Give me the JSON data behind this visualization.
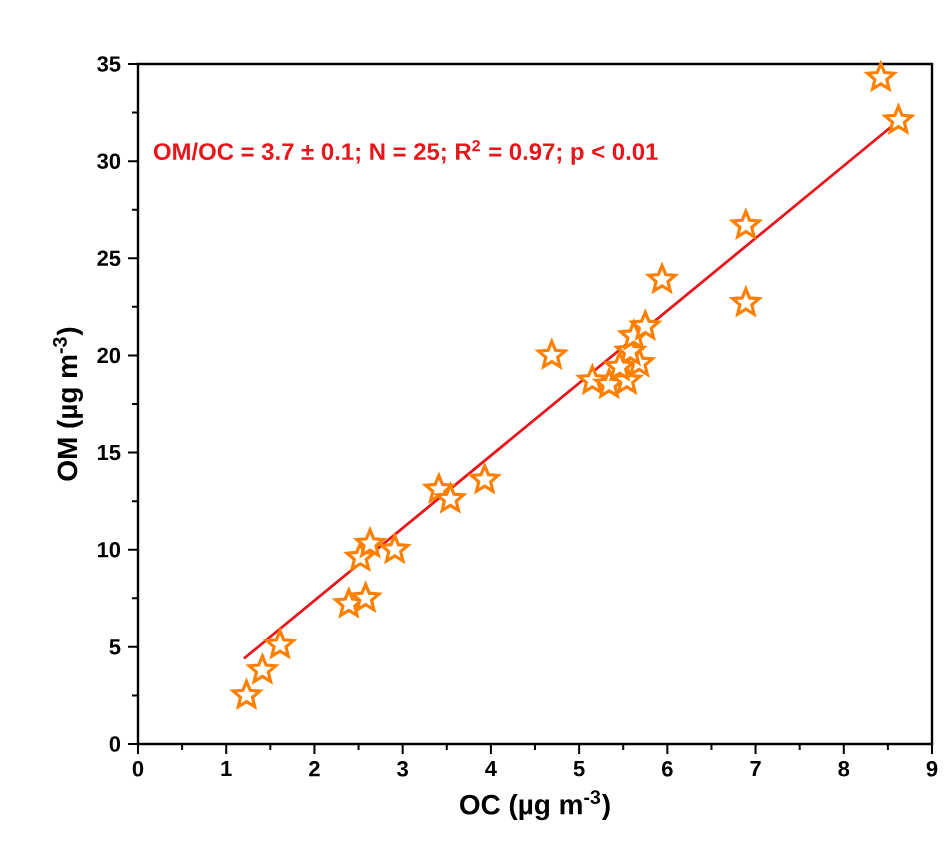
{
  "chart_data": {
    "type": "scatter",
    "xlabel": "OC (µg m$^{-3}$)",
    "ylabel": "OM (µg m$^{-3}$)",
    "annotations": [
      "OM/OC = 3.7 ± 0.1; N = 25; R$^{2}$ = 0.97; p < 0.01"
    ],
    "xlim": [
      0,
      9
    ],
    "xticks": [
      0,
      1,
      2,
      3,
      4,
      5,
      6,
      7,
      8,
      9
    ],
    "ylim": [
      0,
      35
    ],
    "yticks": [
      0,
      5,
      10,
      15,
      20,
      25,
      30,
      35
    ],
    "marker": "star",
    "series": [
      {
        "color": "#ff8000",
        "x": [
          1.23,
          1.41,
          1.61,
          2.39,
          2.58,
          2.52,
          2.63,
          2.91,
          3.41,
          3.54,
          3.93,
          4.69,
          5.15,
          5.34,
          5.54,
          5.68,
          5.58,
          5.46,
          5.62,
          5.75,
          5.94,
          6.89,
          6.89,
          8.42,
          8.62
        ],
        "values": [
          2.5,
          3.8,
          5.1,
          7.2,
          7.5,
          9.6,
          10.3,
          10.0,
          13.1,
          12.6,
          13.6,
          20.0,
          18.7,
          18.5,
          18.7,
          19.6,
          20.2,
          19.4,
          21.0,
          21.5,
          23.9,
          26.7,
          22.7,
          34.3,
          32.1
        ]
      },
      {
        "type": "line",
        "color": "#e8161b",
        "x": [
          1.2,
          8.6
        ],
        "values": [
          4.4,
          32.0
        ],
        "marker": "none"
      }
    ]
  }
}
